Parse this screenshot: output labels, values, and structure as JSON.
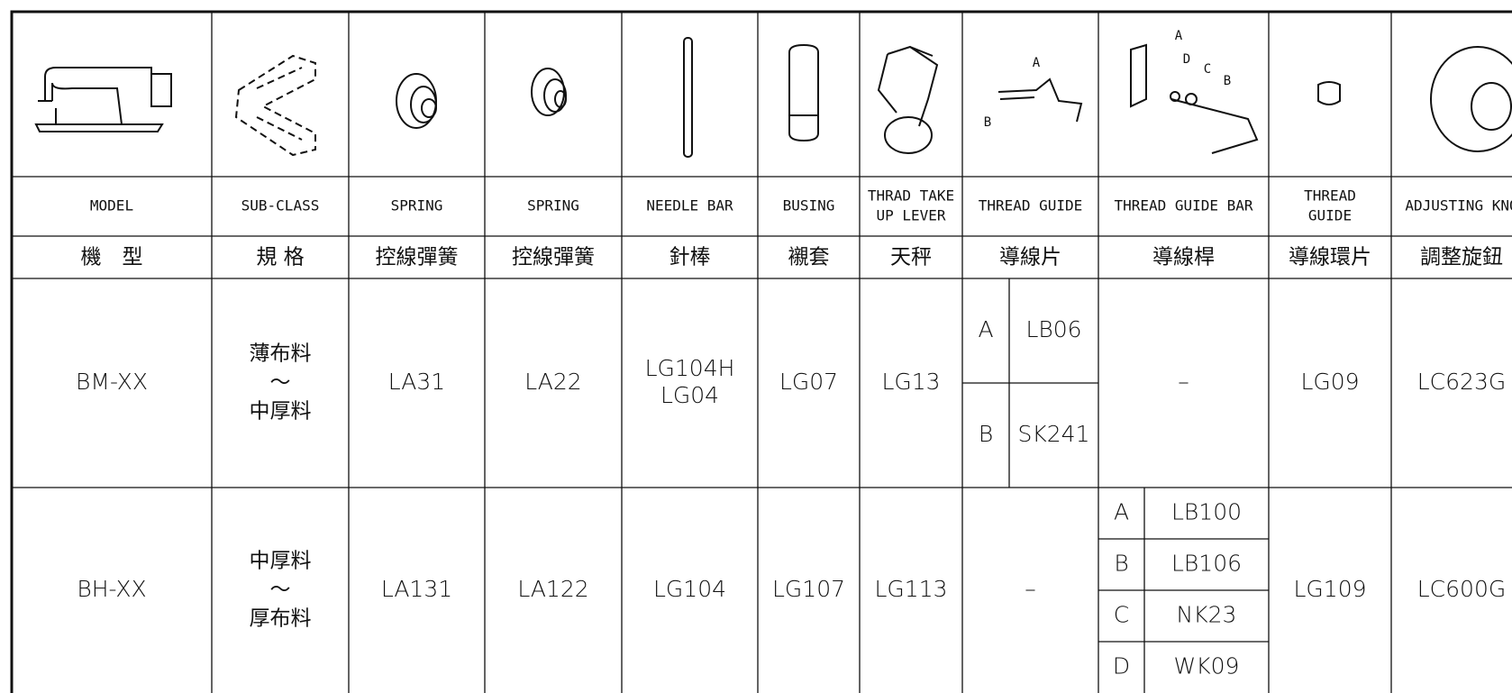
{
  "columns": [
    {
      "en": "MODEL",
      "zh": "機　型"
    },
    {
      "en": "SUB-CLASS",
      "zh": "規 格"
    },
    {
      "en": "SPRING",
      "zh": "控線彈簧"
    },
    {
      "en": "SPRING",
      "zh": "控線彈簧"
    },
    {
      "en": "NEEDLE BAR",
      "zh": "針棒"
    },
    {
      "en": "BUSING",
      "zh": "襯套"
    },
    {
      "en": [
        "THRAD TAKE",
        "UP LEVER"
      ],
      "zh": "天秤"
    },
    {
      "en": "THREAD GUIDE",
      "zh": "導線片"
    },
    {
      "en": "THREAD GUIDE BAR",
      "zh": "導線桿"
    },
    {
      "en": [
        "THREAD",
        "GUIDE"
      ],
      "zh": "導線環片"
    },
    {
      "en": "ADJUSTING KNO",
      "zh": "調整旋鈕"
    }
  ],
  "icons": {
    "thread_guide_labels": [
      "A",
      "B"
    ],
    "thread_guide_bar_labels": [
      "A",
      "D",
      "C",
      "B"
    ]
  },
  "rows": [
    [
      "BM-XX",
      [
        "薄布料",
        "～",
        "中厚料"
      ],
      "LA31",
      "LA22",
      [
        "LG104H",
        "LG04"
      ],
      "LG07",
      "LG13",
      {
        "sub": [
          {
            "label": "A",
            "part": "LB06"
          },
          {
            "label": "B",
            "part": "SK241"
          }
        ]
      },
      "–",
      "LG09",
      "LC623G"
    ],
    [
      "BH-XX",
      [
        "中厚料",
        "～",
        "厚布料"
      ],
      "LA131",
      "LA122",
      "LG104",
      "LG107",
      "LG113",
      "–",
      {
        "sub": [
          {
            "label": "A",
            "part": "LB100"
          },
          {
            "label": "B",
            "part": "LB106"
          },
          {
            "label": "C",
            "part": "NK23"
          },
          {
            "label": "D",
            "part": "WK09"
          }
        ]
      },
      "LG109",
      "LC600G"
    ]
  ]
}
